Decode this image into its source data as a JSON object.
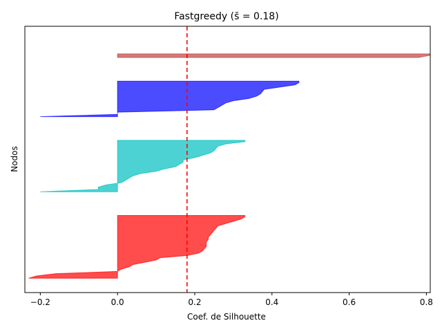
{
  "chart_data": {
    "type": "area",
    "title": "Fastgreedy ($\\bar{s}$ = 0.18)",
    "title_parts": {
      "prefix": "Fastgreedy (",
      "symbol": "s̄",
      "suffix": " = 0.18)"
    },
    "xlabel": "Coef. de Silhouette",
    "ylabel": "Nodos",
    "xlim": [
      -0.24,
      0.81
    ],
    "x_ticks": [
      -0.2,
      0.0,
      0.2,
      0.4,
      0.6,
      0.8
    ],
    "x_tick_labels": [
      "−0.2",
      "0.0",
      "0.2",
      "0.4",
      "0.6",
      "0.8"
    ],
    "y_ticks": [],
    "mean_silhouette": 0.18,
    "mean_line": {
      "color": "#ff0000",
      "style": "dashed"
    },
    "clusters": [
      {
        "color": "#ff0000",
        "values": [
          0.33,
          0.32,
          0.3,
          0.28,
          0.26,
          0.255,
          0.25,
          0.245,
          0.24,
          0.235,
          0.235,
          0.23,
          0.23,
          0.23,
          0.225,
          0.22,
          0.21,
          0.18,
          0.11,
          0.1,
          0.07,
          0.04,
          0.03,
          0.01,
          0.0,
          -0.16,
          -0.21,
          -0.23
        ]
      },
      {
        "color": "#00bfbf",
        "values": [
          0.33,
          0.28,
          0.26,
          0.255,
          0.25,
          0.24,
          0.22,
          0.2,
          0.17,
          0.17,
          0.16,
          0.15,
          0.12,
          0.1,
          0.06,
          0.04,
          0.03,
          0.02,
          0.01,
          -0.03,
          -0.05,
          -0.05,
          -0.2
        ]
      },
      {
        "color": "#0000ff",
        "values": [
          0.47,
          0.46,
          0.42,
          0.38,
          0.375,
          0.37,
          0.36,
          0.34,
          0.3,
          0.28,
          0.27,
          0.26,
          0.25,
          0.0,
          0.0,
          -0.2
        ]
      },
      {
        "color": "#c04040",
        "values": [
          0.81,
          0.78
        ]
      }
    ]
  }
}
